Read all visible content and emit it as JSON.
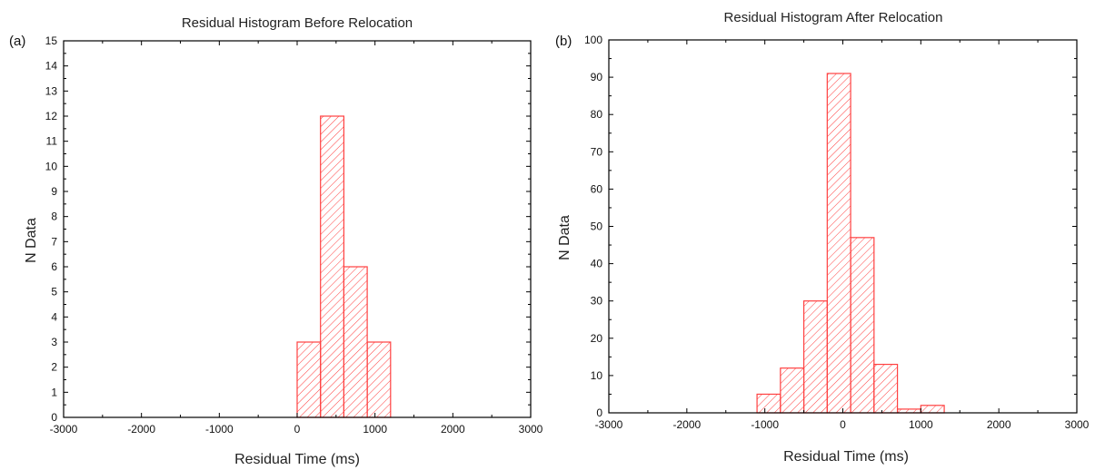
{
  "accent": "#ff4040",
  "chart_data": [
    {
      "type": "bar",
      "panel_label": "(a)",
      "title": "Residual Histogram Before Relocation",
      "xlabel": "Residual Time (ms)",
      "ylabel": "N Data",
      "xlim": [
        -3000,
        3000
      ],
      "ylim": [
        0,
        15
      ],
      "x_ticks": [
        -3000,
        -2000,
        -1000,
        0,
        1000,
        2000,
        3000
      ],
      "y_ticks": [
        0,
        1,
        2,
        3,
        4,
        5,
        6,
        7,
        8,
        9,
        10,
        11,
        12,
        13,
        14,
        15
      ],
      "bins": [
        {
          "start": 0,
          "end": 300,
          "count": 3
        },
        {
          "start": 300,
          "end": 600,
          "count": 12
        },
        {
          "start": 600,
          "end": 900,
          "count": 6
        },
        {
          "start": 900,
          "end": 1200,
          "count": 3
        }
      ],
      "grid": false,
      "fill": "hatched"
    },
    {
      "type": "bar",
      "panel_label": "(b)",
      "title": "Residual Histogram After Relocation",
      "xlabel": "Residual Time (ms)",
      "ylabel": "N Data",
      "xlim": [
        -3000,
        3000
      ],
      "ylim": [
        0,
        100
      ],
      "x_ticks": [
        -3000,
        -2000,
        -1000,
        0,
        1000,
        2000,
        3000
      ],
      "y_ticks": [
        0,
        10,
        20,
        30,
        40,
        50,
        60,
        70,
        80,
        90,
        100
      ],
      "bins": [
        {
          "start": -1100,
          "end": -800,
          "count": 5
        },
        {
          "start": -800,
          "end": -500,
          "count": 12
        },
        {
          "start": -500,
          "end": -200,
          "count": 30
        },
        {
          "start": -200,
          "end": 100,
          "count": 91
        },
        {
          "start": 100,
          "end": 400,
          "count": 47
        },
        {
          "start": 400,
          "end": 700,
          "count": 13
        },
        {
          "start": 700,
          "end": 1000,
          "count": 1
        },
        {
          "start": 1000,
          "end": 1300,
          "count": 2
        }
      ],
      "grid": false,
      "fill": "hatched"
    }
  ]
}
